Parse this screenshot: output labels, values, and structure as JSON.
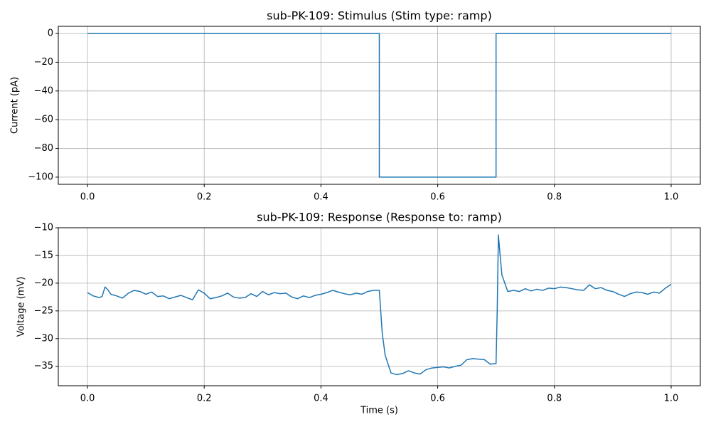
{
  "chart_data": [
    {
      "type": "line",
      "title": "sub-PK-109: Stimulus (Stim type: ramp)",
      "ylabel": "Current (pA)",
      "color": "#1f77b4",
      "grid": true,
      "x": [
        0,
        0.5,
        0.5,
        0.7,
        0.7,
        1.0
      ],
      "values": [
        0,
        0,
        -100,
        -100,
        0,
        0
      ],
      "xlim": [
        -0.05,
        1.05
      ],
      "xticks": [
        {
          "value": 0,
          "label": "0.0"
        },
        0.2,
        0.4,
        0.6,
        0.8,
        {
          "value": 1,
          "label": "1.0"
        }
      ],
      "ylim": [
        -105,
        5
      ],
      "yticks": [
        0,
        {
          "value": -20,
          "label": "−20"
        },
        {
          "value": -40,
          "label": "−40"
        },
        {
          "value": -60,
          "label": "−60"
        },
        {
          "value": -80,
          "label": "−80"
        },
        {
          "value": -100,
          "label": "−100"
        }
      ]
    },
    {
      "type": "line",
      "title": "sub-PK-109: Response (Response to: ramp)",
      "ylabel": "Voltage (mV)",
      "xlabel": "Time (s)",
      "color": "#1f77b4",
      "grid": true,
      "x": [
        0,
        0.01,
        0.02,
        0.025,
        0.03,
        0.035,
        0.04,
        0.05,
        0.06,
        0.07,
        0.08,
        0.09,
        0.1,
        0.11,
        0.12,
        0.13,
        0.14,
        0.15,
        0.16,
        0.17,
        0.18,
        0.19,
        0.2,
        0.21,
        0.22,
        0.23,
        0.24,
        0.25,
        0.26,
        0.27,
        0.28,
        0.29,
        0.3,
        0.31,
        0.32,
        0.33,
        0.34,
        0.35,
        0.36,
        0.37,
        0.38,
        0.39,
        0.4,
        0.41,
        0.42,
        0.43,
        0.44,
        0.45,
        0.46,
        0.47,
        0.48,
        0.49,
        0.5,
        0.505,
        0.51,
        0.52,
        0.53,
        0.54,
        0.55,
        0.56,
        0.57,
        0.58,
        0.59,
        0.6,
        0.61,
        0.62,
        0.63,
        0.64,
        0.65,
        0.66,
        0.67,
        0.68,
        0.69,
        0.7,
        0.702,
        0.704,
        0.707,
        0.71,
        0.715,
        0.72,
        0.73,
        0.74,
        0.75,
        0.76,
        0.77,
        0.78,
        0.79,
        0.8,
        0.81,
        0.82,
        0.83,
        0.84,
        0.85,
        0.86,
        0.87,
        0.88,
        0.89,
        0.9,
        0.91,
        0.92,
        0.93,
        0.94,
        0.95,
        0.96,
        0.97,
        0.98,
        0.99,
        1.0
      ],
      "values": [
        -21.7,
        -22.3,
        -22.6,
        -22.4,
        -20.7,
        -21.2,
        -22.0,
        -22.3,
        -22.7,
        -21.8,
        -21.3,
        -21.5,
        -22.0,
        -21.6,
        -22.4,
        -22.3,
        -22.8,
        -22.5,
        -22.2,
        -22.6,
        -23.0,
        -21.2,
        -21.8,
        -22.8,
        -22.6,
        -22.3,
        -21.8,
        -22.5,
        -22.7,
        -22.6,
        -21.9,
        -22.4,
        -21.5,
        -22.1,
        -21.7,
        -21.9,
        -21.8,
        -22.5,
        -22.8,
        -22.3,
        -22.6,
        -22.2,
        -22.0,
        -21.7,
        -21.3,
        -21.6,
        -21.9,
        -22.1,
        -21.8,
        -22.0,
        -21.5,
        -21.3,
        -21.3,
        -29,
        -33,
        -36.2,
        -36.5,
        -36.3,
        -35.8,
        -36.2,
        -36.4,
        -35.6,
        -35.3,
        -35.2,
        -35.1,
        -35.3,
        -35.0,
        -34.8,
        -33.8,
        -33.6,
        -33.7,
        -33.8,
        -34.6,
        -34.5,
        -25,
        -11.3,
        -15,
        -18.5,
        -20,
        -21.5,
        -21.3,
        -21.5,
        -21.0,
        -21.4,
        -21.1,
        -21.3,
        -20.9,
        -21.0,
        -20.7,
        -20.8,
        -21.0,
        -21.2,
        -21.3,
        -20.3,
        -21.0,
        -20.8,
        -21.3,
        -21.5,
        -22.0,
        -22.4,
        -21.9,
        -21.6,
        -21.7,
        -22.0,
        -21.6,
        -21.8,
        -20.9,
        -20.2
      ],
      "xlim": [
        -0.05,
        1.05
      ],
      "xticks": [
        {
          "value": 0,
          "label": "0.0"
        },
        0.2,
        0.4,
        0.6,
        0.8,
        {
          "value": 1,
          "label": "1.0"
        }
      ],
      "ylim": [
        -38.5,
        -10
      ],
      "yticks": [
        {
          "value": -10,
          "label": "−10"
        },
        {
          "value": -15,
          "label": "−15"
        },
        {
          "value": -20,
          "label": "−20"
        },
        {
          "value": -25,
          "label": "−25"
        },
        {
          "value": -30,
          "label": "−30"
        },
        {
          "value": -35,
          "label": "−35"
        }
      ]
    }
  ]
}
